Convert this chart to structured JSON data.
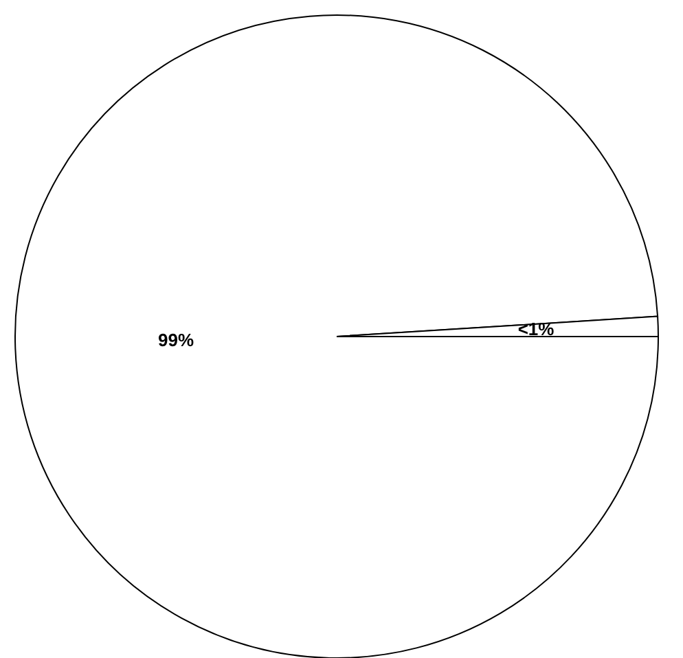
{
  "chart_data": {
    "type": "pie",
    "categories": [
      null,
      null
    ],
    "values": [
      99,
      1
    ],
    "colors": [
      "#ffffff",
      "#ffffff"
    ],
    "value_labels": [
      "99%",
      "<1%"
    ]
  }
}
